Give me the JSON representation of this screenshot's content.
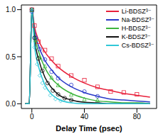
{
  "chart_data": {
    "type": "line",
    "x_label": "Delay Time (psec)",
    "xlim": [
      -8,
      95
    ],
    "ylim": [
      -0.05,
      1.05
    ],
    "xticks": [
      0,
      40,
      80
    ],
    "yticks": [
      {
        "value": 0,
        "label": "0.0"
      },
      {
        "value": 0.5,
        "label": "0.5"
      },
      {
        "value": 1,
        "label": "1.0"
      }
    ],
    "grid": false,
    "legend": "upper right",
    "x": [
      -5,
      -2,
      0,
      2,
      5,
      10,
      15,
      20,
      30,
      40,
      50,
      60,
      70,
      80,
      90
    ],
    "series": [
      {
        "name": "Li-BDSZ³⁻",
        "color": "#e8203a",
        "marker": "square",
        "values": [
          0,
          0,
          1,
          0.82,
          0.68,
          0.55,
          0.46,
          0.39,
          0.29,
          0.22,
          0.17,
          0.14,
          0.11,
          0.09,
          0.07
        ],
        "points": {
          "x": [
            0,
            2,
            5,
            10,
            15,
            20,
            30,
            40,
            50,
            60,
            70,
            80
          ],
          "y": [
            1,
            0.83,
            0.66,
            0.57,
            0.48,
            0.4,
            0.3,
            0.25,
            0.18,
            0.13,
            0.12,
            0.1
          ]
        }
      },
      {
        "name": "Na-BDSZ³⁻",
        "color": "#2838c8",
        "marker": "circle",
        "values": [
          0,
          0,
          1,
          0.78,
          0.62,
          0.46,
          0.36,
          0.28,
          0.18,
          0.12,
          0.08,
          0.05,
          0.04,
          0.03,
          0.02
        ],
        "points": {
          "x": [
            0,
            3,
            6,
            10,
            15,
            20,
            30,
            40,
            50
          ],
          "y": [
            0.98,
            0.7,
            0.58,
            0.47,
            0.34,
            0.27,
            0.2,
            0.13,
            0.08
          ]
        }
      },
      {
        "name": "H-BDSZ³⁻",
        "color": "#3cb43c",
        "marker": "triangle",
        "values": [
          0,
          0,
          1,
          0.74,
          0.56,
          0.38,
          0.27,
          0.2,
          0.11,
          0.06,
          0.03,
          0.02,
          0.01,
          0.01,
          0
        ],
        "points": {
          "x": [
            0,
            3,
            6,
            10,
            15,
            20,
            30,
            40,
            50
          ],
          "y": [
            1,
            0.68,
            0.5,
            0.4,
            0.28,
            0.2,
            0.1,
            0.05,
            0.04
          ]
        }
      },
      {
        "name": "K-BDSZ³⁻",
        "color": "#111111",
        "marker": "circle",
        "values": [
          0,
          0,
          1,
          0.68,
          0.48,
          0.28,
          0.17,
          0.1,
          0.04,
          0.015,
          0.01,
          0,
          0,
          0,
          0
        ],
        "points": {
          "x": [
            0,
            2,
            5,
            8,
            12,
            16,
            20,
            25,
            30
          ],
          "y": [
            1,
            0.7,
            0.48,
            0.35,
            0.22,
            0.14,
            0.1,
            0.06,
            0.04
          ]
        }
      },
      {
        "name": "Cs-BDSZ³⁻",
        "color": "#30c8d8",
        "marker": "diamond",
        "values": [
          0,
          0,
          1,
          0.62,
          0.4,
          0.2,
          0.1,
          0.05,
          0.01,
          0,
          0,
          0,
          0,
          0,
          0
        ],
        "points": {
          "x": [
            0,
            2,
            4,
            6,
            8,
            10,
            14,
            18,
            22
          ],
          "y": [
            1,
            0.6,
            0.42,
            0.3,
            0.22,
            0.17,
            0.09,
            0.05,
            0.03
          ]
        }
      }
    ]
  }
}
